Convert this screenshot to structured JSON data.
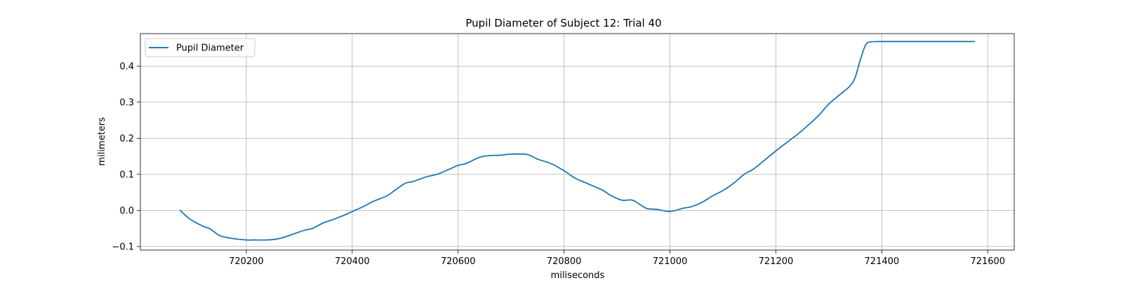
{
  "chart_data": {
    "type": "line",
    "title": "Pupil Diameter of Subject 12: Trial 40",
    "xlabel": "miliseconds",
    "ylabel": "milimeters",
    "xlim": [
      720000,
      721650
    ],
    "ylim": [
      -0.11,
      0.49
    ],
    "x_ticks": [
      720200,
      720400,
      720600,
      720800,
      721000,
      721200,
      721400,
      721600
    ],
    "y_ticks": [
      -0.1,
      0.0,
      0.1,
      0.2,
      0.3,
      0.4
    ],
    "y_tick_labels": [
      "−0.1",
      "0.0",
      "0.1",
      "0.2",
      "0.3",
      "0.4"
    ],
    "grid": true,
    "legend_position": "top-left",
    "series": [
      {
        "name": "Pupil Diameter",
        "color": "#1f77b4",
        "x": [
          720075,
          720090,
          720100,
          720120,
          720130,
          720140,
          720150,
          720170,
          720200,
          720215,
          720240,
          720255,
          720270,
          720290,
          720310,
          720325,
          720345,
          720370,
          720390,
          720420,
          720440,
          720465,
          720480,
          720500,
          720515,
          720540,
          720560,
          720580,
          720600,
          720615,
          720640,
          720660,
          720680,
          720700,
          720730,
          720750,
          720775,
          720800,
          720820,
          720840,
          720870,
          720890,
          720910,
          720930,
          720955,
          720975,
          721000,
          721025,
          721040,
          721060,
          721080,
          721100,
          721120,
          721140,
          721160,
          721200,
          721240,
          721260,
          721280,
          721300,
          721320,
          721340,
          721350,
          721360,
          721370,
          721380,
          721400,
          721500,
          721575
        ],
        "y": [
          0.0,
          -0.02,
          -0.03,
          -0.045,
          -0.05,
          -0.06,
          -0.07,
          -0.077,
          -0.082,
          -0.082,
          -0.082,
          -0.08,
          -0.075,
          -0.065,
          -0.055,
          -0.05,
          -0.035,
          -0.022,
          -0.01,
          0.01,
          0.025,
          0.04,
          0.055,
          0.075,
          0.08,
          0.093,
          0.1,
          0.112,
          0.125,
          0.13,
          0.147,
          0.152,
          0.153,
          0.156,
          0.155,
          0.142,
          0.13,
          0.11,
          0.09,
          0.077,
          0.058,
          0.04,
          0.028,
          0.028,
          0.006,
          0.003,
          -0.003,
          0.006,
          0.01,
          0.022,
          0.04,
          0.055,
          0.075,
          0.1,
          0.117,
          0.165,
          0.21,
          0.235,
          0.262,
          0.295,
          0.32,
          0.345,
          0.37,
          0.42,
          0.46,
          0.467,
          0.468,
          0.468,
          0.468
        ]
      }
    ]
  }
}
